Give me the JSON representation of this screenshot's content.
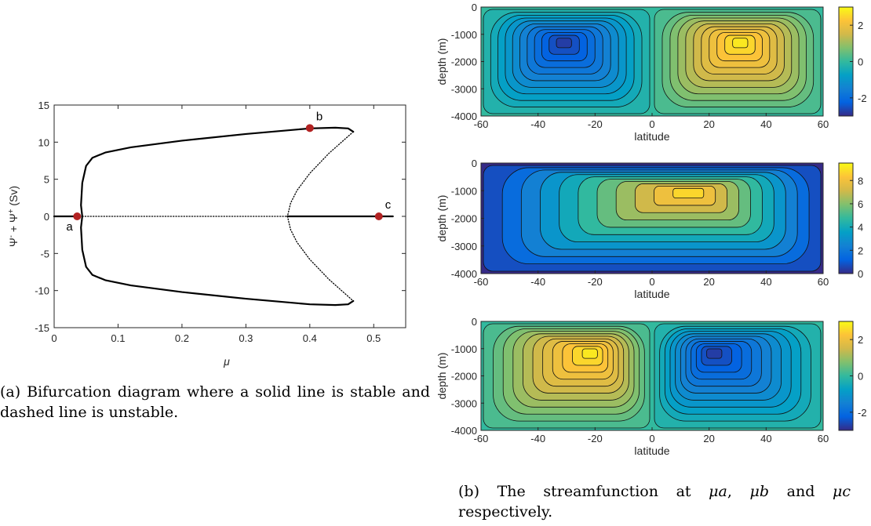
{
  "chart_data": [
    {
      "type": "line",
      "subfigure": "(a)",
      "xlabel": "μ",
      "ylabel_parts": {
        "a": "Ψ",
        "sup1": "-",
        "mid": " + Ψ",
        "sup2": "+",
        "unit": " (Sv)"
      },
      "xlim": [
        0,
        0.55
      ],
      "ylim": [
        -15,
        15
      ],
      "xticks": [
        0,
        0.1,
        0.2,
        0.3,
        0.4,
        0.5
      ],
      "yticks": [
        -15,
        -10,
        -5,
        0,
        5,
        10,
        15
      ],
      "xtick_labels": [
        "0",
        "0.1",
        "0.2",
        "0.3",
        "0.4",
        "0.5"
      ],
      "ytick_labels": [
        "-15",
        "-10",
        "-5",
        "0",
        "5",
        "10",
        "15"
      ],
      "series": [
        {
          "style": "solid",
          "x": [
            0.0,
            0.04
          ],
          "y": [
            0,
            0
          ]
        },
        {
          "style": "dotted",
          "x": [
            0.04,
            0.365
          ],
          "y": [
            0,
            0
          ]
        },
        {
          "style": "solid",
          "x": [
            0.365,
            0.53
          ],
          "y": [
            0,
            0
          ]
        },
        {
          "style": "solid",
          "x": [
            0.044,
            0.042,
            0.044,
            0.05,
            0.06,
            0.08,
            0.12,
            0.2,
            0.3,
            0.4,
            0.44,
            0.46,
            0.468
          ],
          "y": [
            0,
            1.5,
            4.5,
            6.8,
            7.9,
            8.6,
            9.3,
            10.2,
            11.1,
            11.85,
            11.95,
            11.85,
            11.4
          ]
        },
        {
          "style": "solid",
          "x": [
            0.044,
            0.042,
            0.044,
            0.05,
            0.06,
            0.08,
            0.12,
            0.2,
            0.3,
            0.4,
            0.44,
            0.46,
            0.468
          ],
          "y": [
            0,
            -1.5,
            -4.5,
            -6.8,
            -7.9,
            -8.6,
            -9.3,
            -10.2,
            -11.1,
            -11.85,
            -11.95,
            -11.85,
            -11.4
          ]
        },
        {
          "style": "dotted",
          "x": [
            0.468,
            0.43,
            0.4,
            0.38,
            0.37,
            0.365,
            0.37,
            0.38,
            0.4,
            0.43,
            0.468
          ],
          "y": [
            11.4,
            8.5,
            5.8,
            3.5,
            1.8,
            0,
            -1.8,
            -3.5,
            -5.8,
            -8.5,
            -11.4
          ]
        }
      ],
      "points": [
        {
          "label": "a",
          "x": 0.036,
          "y": 0,
          "color": "#b22222"
        },
        {
          "label": "b",
          "x": 0.4,
          "y": 11.9,
          "color": "#b22222"
        },
        {
          "label": "c",
          "x": 0.508,
          "y": 0,
          "color": "#b22222"
        }
      ]
    },
    {
      "type": "heatmap",
      "subfigure": "(b) top",
      "xlabel": "latitude",
      "ylabel": "depth (m)",
      "xlim": [
        -60,
        60
      ],
      "ylim": [
        -4000,
        0
      ],
      "xtick_labels": [
        "-60",
        "-40",
        "-20",
        "0",
        "20",
        "40",
        "60"
      ],
      "ytick_labels": [
        "0",
        "-1000",
        "-2000",
        "-3000",
        "-4000"
      ],
      "colorbar": {
        "range": [
          -3,
          3
        ],
        "tick_values": [
          2,
          0,
          -2
        ],
        "tick_labels": [
          "2",
          "0",
          "-2"
        ]
      },
      "cells": [
        {
          "lat_range": [
            -60,
            0
          ],
          "peak_lat": -31,
          "peak_depth": -1250,
          "amplitude": -3
        },
        {
          "lat_range": [
            0,
            60
          ],
          "peak_lat": 31,
          "peak_depth": -1250,
          "amplitude": 3
        }
      ]
    },
    {
      "type": "heatmap",
      "subfigure": "(b) middle",
      "xlabel": "latitude",
      "ylabel": "depth (m)",
      "xlim": [
        -60,
        60
      ],
      "ylim": [
        -4000,
        0
      ],
      "xtick_labels": [
        "-60",
        "-40",
        "-20",
        "0",
        "20",
        "40",
        "60"
      ],
      "ytick_labels": [
        "0",
        "-1000",
        "-2000",
        "-3000",
        "-4000"
      ],
      "colorbar": {
        "range": [
          0,
          9.5
        ],
        "tick_values": [
          8,
          6,
          4,
          2,
          0
        ],
        "tick_labels": [
          "8",
          "6",
          "4",
          "2",
          "0"
        ]
      },
      "cells": [
        {
          "lat_range": [
            -60,
            60
          ],
          "peak_lat": 14,
          "peak_depth": -1000,
          "amplitude": 9.5
        }
      ]
    },
    {
      "type": "heatmap",
      "subfigure": "(b) bottom",
      "xlabel": "latitude",
      "ylabel": "depth (m)",
      "xlim": [
        -60,
        60
      ],
      "ylim": [
        -4000,
        0
      ],
      "xtick_labels": [
        "-60",
        "-40",
        "-20",
        "0",
        "20",
        "40",
        "60"
      ],
      "ytick_labels": [
        "0",
        "-1000",
        "-2000",
        "-3000",
        "-4000"
      ],
      "colorbar": {
        "range": [
          -3,
          3
        ],
        "tick_values": [
          2,
          0,
          -2
        ],
        "tick_labels": [
          "2",
          "0",
          "-2"
        ]
      },
      "cells": [
        {
          "lat_range": [
            -60,
            0
          ],
          "peak_lat": -21,
          "peak_depth": -1100,
          "amplitude": 3
        },
        {
          "lat_range": [
            0,
            60
          ],
          "peak_lat": 21,
          "peak_depth": -1100,
          "amplitude": -3
        }
      ]
    }
  ],
  "captions": {
    "a": "(a) Bifurcation diagram where a solid line is stable and dashed line is unstable.",
    "b_prefix": "(b) The streamfunction at ",
    "b_mu_a": "μa",
    "b_sep1": ", ",
    "b_mu_b": "μb",
    "b_sep2": " and ",
    "b_mu_c": "μc",
    "b_suffix": " respectively."
  }
}
